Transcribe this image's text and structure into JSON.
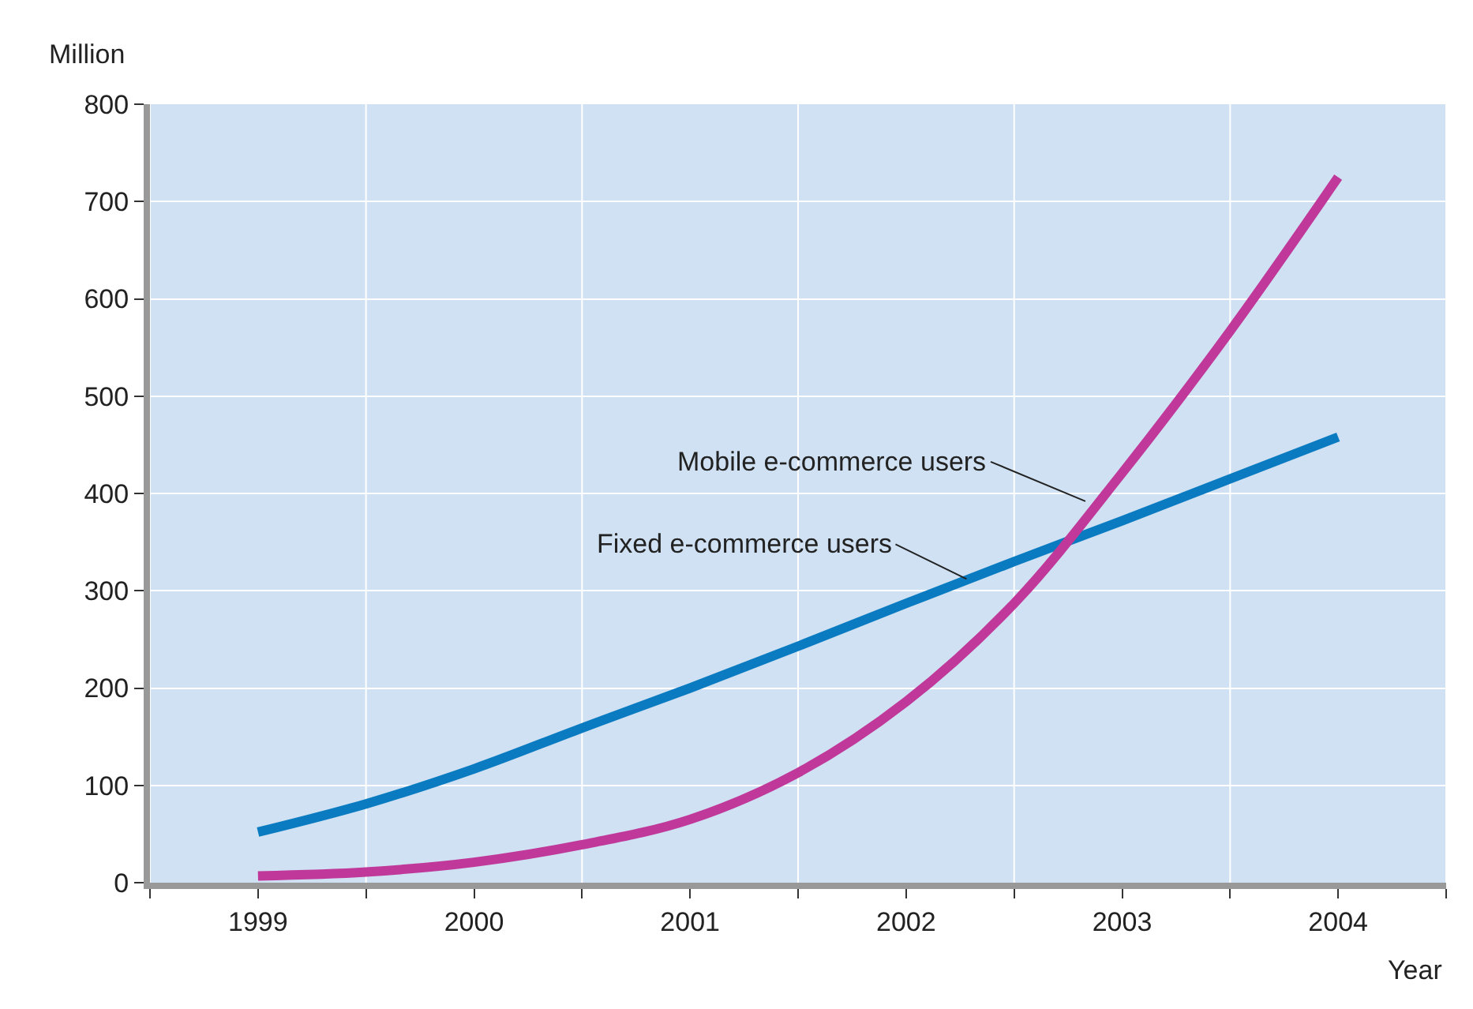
{
  "chart_data": {
    "type": "line",
    "xlabel": "Year",
    "ylabel": "Million",
    "xlim": [
      1998.5,
      2004.5
    ],
    "xticks": [
      {
        "value": 1998.5,
        "label": null
      },
      {
        "value": 1999,
        "label": "1999"
      },
      {
        "value": 1999.5,
        "label": null
      },
      {
        "value": 2000,
        "label": "2000"
      },
      {
        "value": 2000.5,
        "label": null
      },
      {
        "value": 2001,
        "label": "2001"
      },
      {
        "value": 2001.5,
        "label": null
      },
      {
        "value": 2002,
        "label": "2002"
      },
      {
        "value": 2002.5,
        "label": null
      },
      {
        "value": 2003,
        "label": "2003"
      },
      {
        "value": 2003.5,
        "label": null
      },
      {
        "value": 2004,
        "label": "2004"
      },
      {
        "value": 2004.5,
        "label": null
      }
    ],
    "ylim": [
      0,
      800
    ],
    "yticks": [
      0,
      100,
      200,
      300,
      400,
      500,
      600,
      700,
      800
    ],
    "grid": true,
    "line_style": "solid",
    "x": [
      1999,
      1999.5,
      2000,
      2000.5,
      2001,
      2001.5,
      2002,
      2002.5,
      2003,
      2003.5,
      2004
    ],
    "series": [
      {
        "color": "#0a7bc1",
        "values": [
          52,
          81,
          117,
          159,
          200,
          243,
          287,
          330,
          372,
          415,
          458
        ]
      },
      {
        "color": "#c0399a",
        "values": [
          7,
          11,
          21,
          39,
          65,
          113,
          186,
          287,
          421,
          567,
          725
        ]
      }
    ],
    "annotations": [
      {
        "text": "Mobile e-commerce users",
        "x": 2002.83,
        "y": 392
      },
      {
        "text": "Fixed e-commerce users",
        "x": 2002.28,
        "y": 312
      }
    ]
  }
}
